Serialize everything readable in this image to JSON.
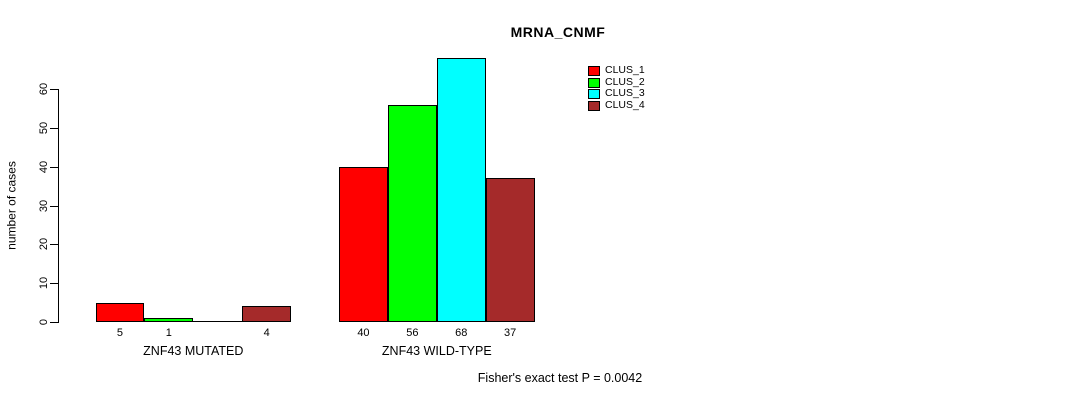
{
  "chart_data": {
    "type": "bar",
    "title": "MRNA_CNMF",
    "ylabel": "number of cases",
    "xlabel": "",
    "ylim": [
      0,
      60
    ],
    "yticks": [
      0,
      10,
      20,
      30,
      40,
      50,
      60
    ],
    "grid": false,
    "legend_position": "top-right",
    "categories": [
      "ZNF43 MUTATED",
      "ZNF43 WILD-TYPE"
    ],
    "series": [
      {
        "name": "CLUS_1",
        "color": "#FF0000",
        "values": [
          5,
          40
        ]
      },
      {
        "name": "CLUS_2",
        "color": "#00FF00",
        "values": [
          1,
          56
        ]
      },
      {
        "name": "CLUS_3",
        "color": "#00FFFF",
        "values": [
          0,
          68
        ]
      },
      {
        "name": "CLUS_4",
        "color": "#A52A2A",
        "values": [
          4,
          37
        ]
      }
    ],
    "bar_value_labels": [
      [
        "5",
        "1",
        "",
        "4"
      ],
      [
        "40",
        "56",
        "68",
        "37"
      ]
    ],
    "annotation": "Fisher's exact test P = 0.0042"
  }
}
